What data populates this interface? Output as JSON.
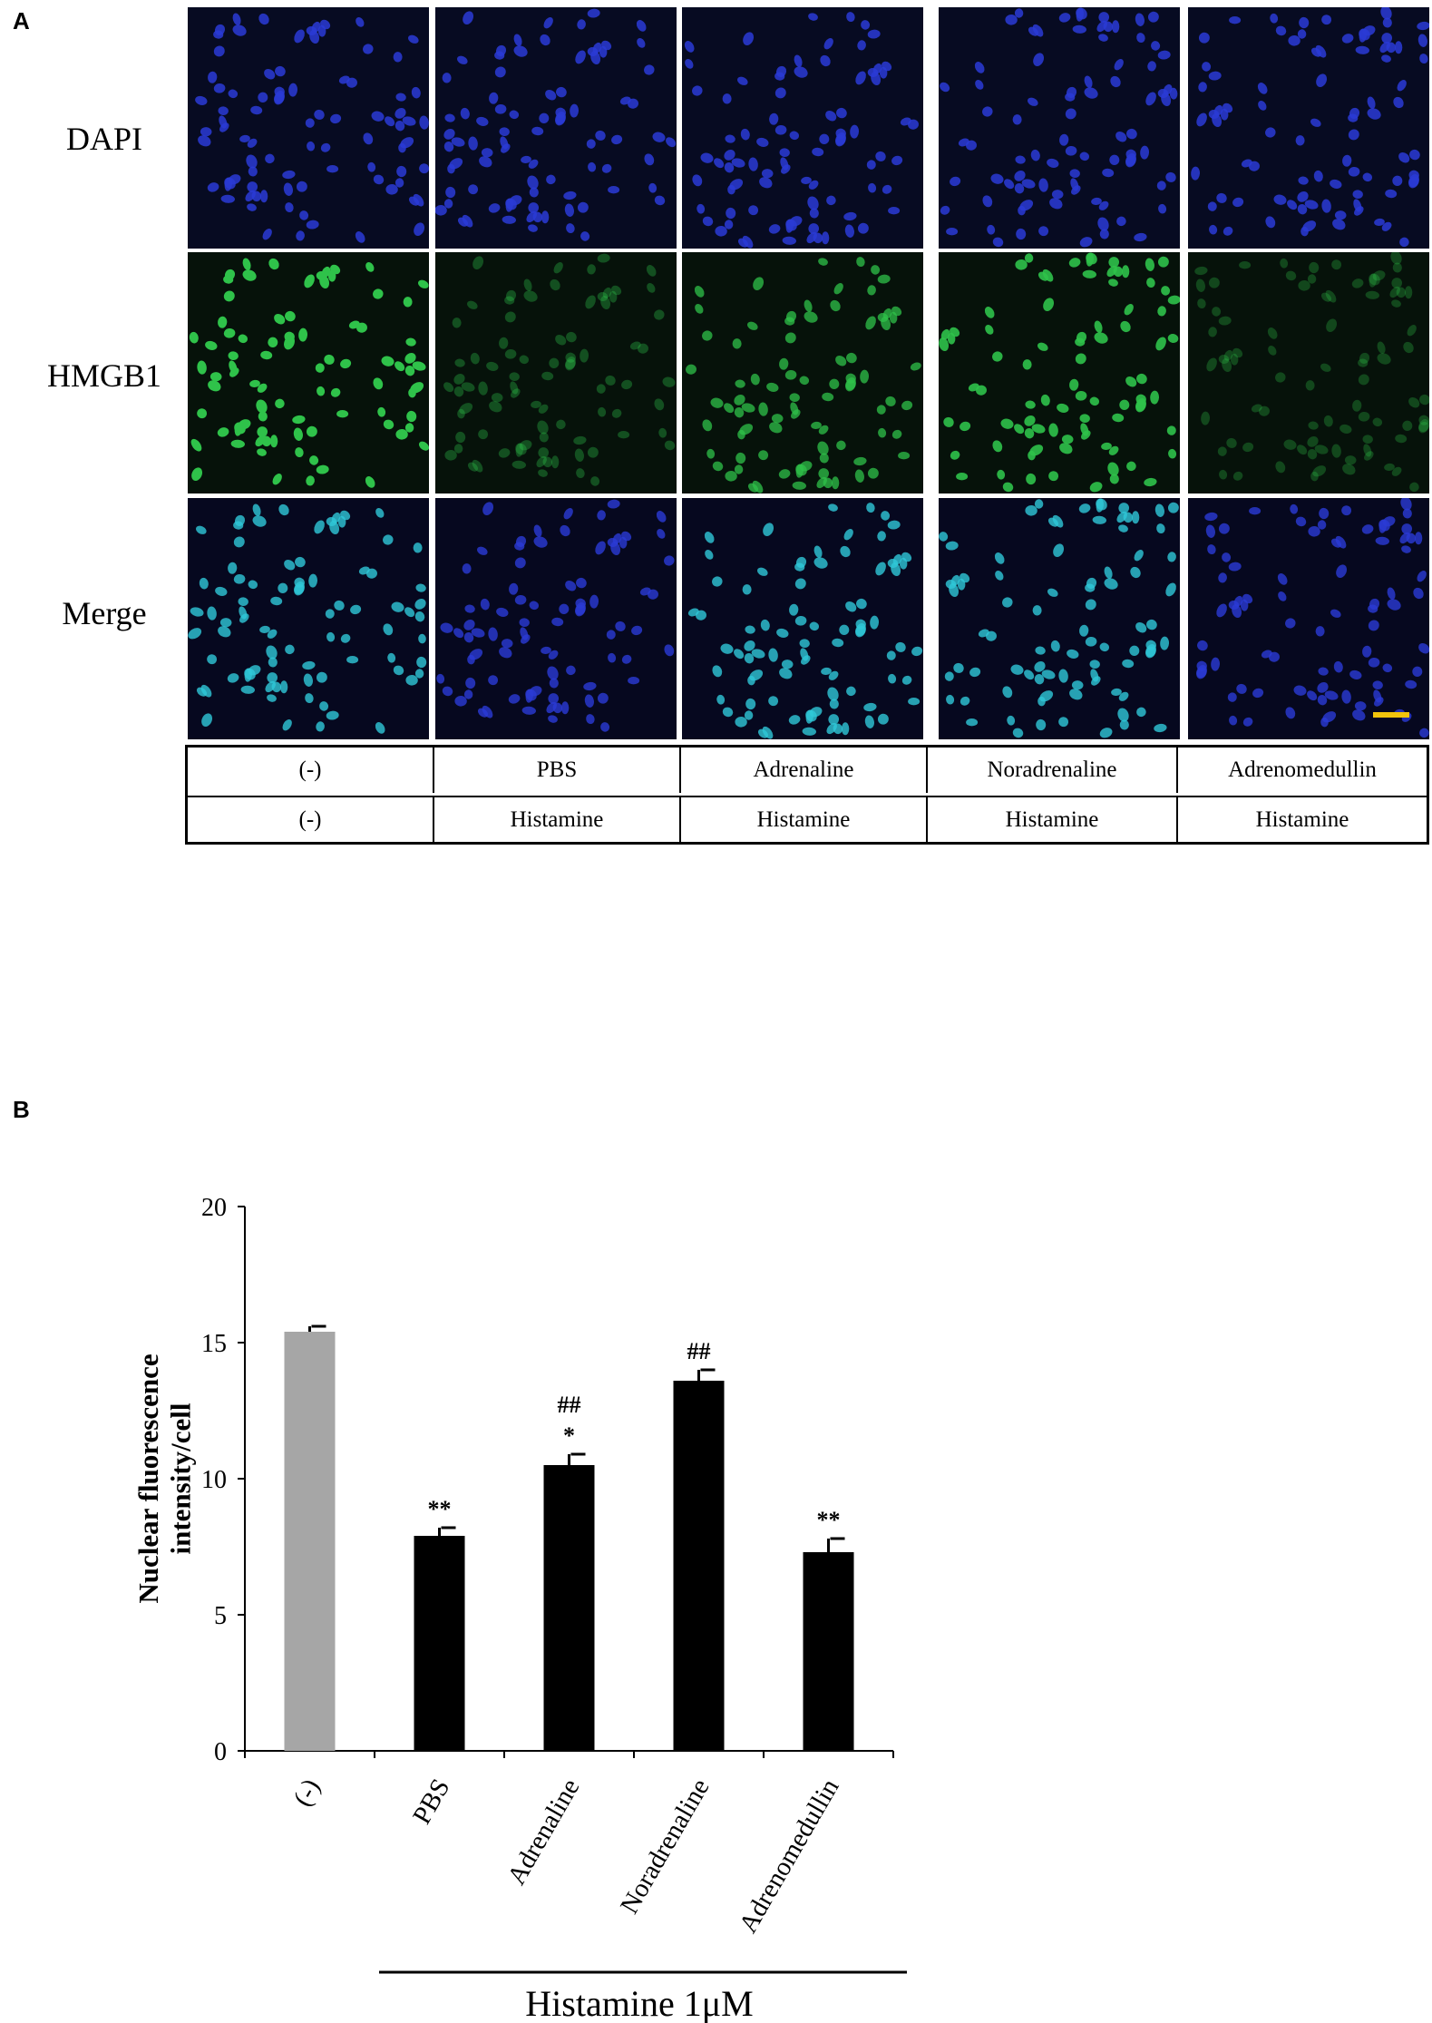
{
  "panel_a": {
    "label": "A",
    "rows": [
      {
        "label": "DAPI",
        "channel": "dapi"
      },
      {
        "label": "HMGB1",
        "channel": "hmgb1"
      },
      {
        "label": "Merge",
        "channel": "merge"
      }
    ],
    "condition_table": {
      "row1": [
        "(-)",
        "PBS",
        "Adrenaline",
        "Noradrenaline",
        "Adrenomedullin"
      ],
      "row2": [
        "(-)",
        "Histamine",
        "Histamine",
        "Histamine",
        "Histamine"
      ]
    },
    "colors": {
      "dapi": "#2a3bd6",
      "hmgb1": "#2fc24a",
      "merge": "#2fc8d8",
      "scale_bar": "#f2c40c"
    }
  },
  "panel_b": {
    "label": "B",
    "bracket_label": "Histamine  1μM"
  },
  "chart_data": {
    "type": "bar",
    "categories": [
      "(-)",
      "PBS",
      "Adrenaline",
      "Noradrenaline",
      "Adrenomedullin"
    ],
    "values": [
      15.4,
      7.9,
      10.5,
      13.6,
      7.3
    ],
    "errors": [
      0.2,
      0.3,
      0.4,
      0.4,
      0.5
    ],
    "annotations": [
      "",
      "**",
      "##\n*",
      "##",
      "**"
    ],
    "bar_colors": [
      "#a6a6a6",
      "#000000",
      "#000000",
      "#000000",
      "#000000"
    ],
    "title": "",
    "xlabel": "",
    "ylabel": "Nuclear fluorescence intensity/cell",
    "ylim": [
      0,
      20
    ],
    "yticks": [
      0,
      5,
      10,
      15,
      20
    ],
    "grid": false
  }
}
